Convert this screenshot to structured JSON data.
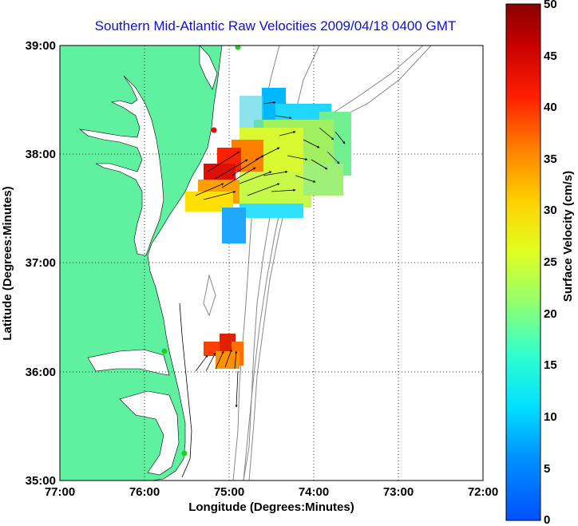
{
  "title": "Southern Mid-Atlantic Raw Velocities 2009/04/18 0400 GMT",
  "map": {
    "x_axis": {
      "label": "Longitude (Degrees:Minutes)",
      "ticks": [
        "77:00",
        "76:00",
        "75:00",
        "74:00",
        "73:00",
        "72:00"
      ],
      "range": [
        -77,
        -72
      ]
    },
    "y_axis": {
      "label": "Latitude (Degrees:Minutes)",
      "ticks": [
        "39:00",
        "38:00",
        "37:00",
        "36:00",
        "35:00"
      ],
      "range": [
        35,
        39
      ]
    },
    "grid": "dotted",
    "colors": {
      "land": "#5ff0a0",
      "coastline": "#000000",
      "bathymetry": "#888888",
      "station_red": "#e01010",
      "station_green": "#20d020",
      "title": "#1010d0"
    },
    "stations": [
      {
        "color": "green",
        "lon": -74.9,
        "lat": 39.0
      },
      {
        "color": "red",
        "lon": -75.1,
        "lat": 38.2
      },
      {
        "color": "green",
        "lon": -75.75,
        "lat": 36.17
      },
      {
        "color": "green",
        "lon": -75.5,
        "lat": 35.23
      }
    ]
  },
  "colorbar": {
    "label": "Surface Velocity (cm/s)",
    "ticks": [
      "0",
      "5",
      "10",
      "15",
      "20",
      "25",
      "30",
      "35",
      "40",
      "45",
      "50"
    ],
    "range": [
      0,
      50
    ]
  }
}
